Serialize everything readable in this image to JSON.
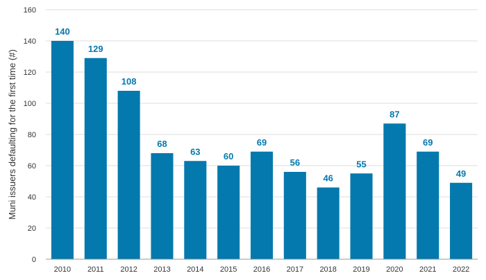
{
  "colors": {
    "bar": "#0479ad",
    "label": "#0479ad",
    "grid": "#dddddd",
    "axis": "#999999"
  },
  "chart_data": {
    "type": "bar",
    "categories": [
      "2010",
      "2011",
      "2012",
      "2013",
      "2014",
      "2015",
      "2016",
      "2017",
      "2018",
      "2019",
      "2020",
      "2021",
      "2022"
    ],
    "values": [
      140,
      129,
      108,
      68,
      63,
      60,
      69,
      56,
      46,
      55,
      87,
      69,
      49
    ],
    "title": "",
    "xlabel": "",
    "ylabel": "Muni issuers defaulting for the first time (#)",
    "ylim": [
      0,
      160
    ],
    "yticks": [
      0,
      20,
      40,
      60,
      80,
      100,
      120,
      140,
      160
    ],
    "grid": true,
    "data_labels": true,
    "legend": "none"
  }
}
